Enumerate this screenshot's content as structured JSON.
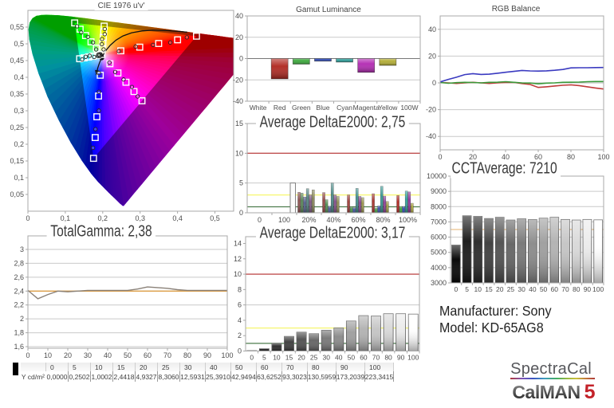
{
  "report": {
    "manufacturer_label": "Manufacturer: Sony",
    "model_label": "Model: KD-65AG8",
    "logo": {
      "spectracal": "SpectraCal",
      "calman": "CalMAN",
      "version": "5"
    }
  },
  "chart_data": [
    {
      "id": "cie",
      "type": "scatter",
      "title": "CIE 1976 u'v'",
      "xticks": [
        "0",
        "0,1",
        "0,2",
        "0,3",
        "0,4",
        "0,5"
      ],
      "xtick_vals": [
        0,
        0.1,
        0.2,
        0.3,
        0.4,
        0.5
      ],
      "yticks": [
        "0",
        "0,05",
        "0,1",
        "0,15",
        "0,2",
        "0,25",
        "0,3",
        "0,35",
        "0,4",
        "0,45",
        "0,5",
        "0,55"
      ],
      "ytick_vals": [
        0,
        0.05,
        0.1,
        0.15,
        0.2,
        0.25,
        0.3,
        0.35,
        0.4,
        0.45,
        0.5,
        0.55
      ],
      "xlim": [
        0,
        0.55
      ],
      "ylim": [
        0,
        0.6
      ],
      "gamut_triangle": [
        [
          0.4507,
          0.5229
        ],
        [
          0.125,
          0.5625
        ],
        [
          0.1754,
          0.1579
        ]
      ],
      "targets": [
        [
          0.2484,
          0.4792
        ],
        [
          0.299,
          0.4901
        ],
        [
          0.3496,
          0.5011
        ],
        [
          0.4001,
          0.512
        ],
        [
          0.4507,
          0.5229
        ],
        [
          0.1833,
          0.4872
        ],
        [
          0.1687,
          0.506
        ],
        [
          0.1541,
          0.5248
        ],
        [
          0.1396,
          0.5437
        ],
        [
          0.125,
          0.5625
        ],
        [
          0.1934,
          0.4062
        ],
        [
          0.1889,
          0.3441
        ],
        [
          0.1844,
          0.2821
        ],
        [
          0.1799,
          0.22
        ],
        [
          0.1754,
          0.1579
        ],
        [
          0.1859,
          0.4657
        ],
        [
          0.174,
          0.4632
        ],
        [
          0.1621,
          0.4606
        ],
        [
          0.1502,
          0.458
        ],
        [
          0.1383,
          0.4555
        ],
        [
          0.2193,
          0.4406
        ],
        [
          0.2407,
          0.4129
        ],
        [
          0.2621,
          0.3852
        ],
        [
          0.2836,
          0.3575
        ],
        [
          0.305,
          0.3298
        ],
        [
          0.199,
          0.4852
        ],
        [
          0.2003,
          0.5022
        ],
        [
          0.2015,
          0.5191
        ],
        [
          0.2027,
          0.536
        ],
        [
          0.2039,
          0.5529
        ],
        [
          0.1978,
          0.4683
        ]
      ],
      "measured": [
        [
          0.2433,
          0.4781
        ],
        [
          0.288,
          0.4918
        ],
        [
          0.3346,
          0.4968
        ],
        [
          0.3807,
          0.504
        ],
        [
          0.425,
          0.5194
        ],
        [
          0.1824,
          0.4834
        ],
        [
          0.174,
          0.5041
        ],
        [
          0.1602,
          0.5205
        ],
        [
          0.1425,
          0.5339
        ],
        [
          0.1313,
          0.5523
        ],
        [
          0.1898,
          0.4127
        ],
        [
          0.1898,
          0.3566
        ],
        [
          0.1897,
          0.3004
        ],
        [
          0.1806,
          0.2449
        ],
        [
          0.174,
          0.1892
        ],
        [
          0.1876,
          0.4637
        ],
        [
          0.177,
          0.4608
        ],
        [
          0.165,
          0.4644
        ],
        [
          0.1545,
          0.4612
        ],
        [
          0.145,
          0.4532
        ],
        [
          0.2178,
          0.4439
        ],
        [
          0.2333,
          0.416
        ],
        [
          0.2558,
          0.3936
        ],
        [
          0.2781,
          0.371
        ],
        [
          0.2934,
          0.3429
        ],
        [
          0.2024,
          0.4833
        ],
        [
          0.1977,
          0.4989
        ],
        [
          0.1982,
          0.5142
        ],
        [
          0.2053,
          0.529
        ],
        [
          0.2054,
          0.5443
        ]
      ],
      "grayscale_measured": [
        [
          0.1938,
          0.4688
        ],
        [
          0.1948,
          0.467
        ],
        [
          0.192,
          0.4642
        ],
        [
          0.1917,
          0.4645
        ],
        [
          0.1935,
          0.4675
        ],
        [
          0.1915,
          0.4688
        ],
        [
          0.1898,
          0.4665
        ],
        [
          0.1917,
          0.464
        ],
        [
          0.191,
          0.4649
        ],
        [
          0.1884,
          0.4679
        ]
      ],
      "planckian_locus": [
        [
          0.4258,
          0.5348
        ],
        [
          0.406,
          0.5369
        ],
        [
          0.3723,
          0.5396
        ],
        [
          0.3336,
          0.5406
        ],
        [
          0.305,
          0.5386
        ],
        [
          0.2776,
          0.533
        ],
        [
          0.2542,
          0.5235
        ],
        [
          0.2357,
          0.5113
        ],
        [
          0.2202,
          0.496
        ],
        [
          0.2095,
          0.4816
        ],
        [
          0.2005,
          0.4655
        ],
        [
          0.1946,
          0.4522
        ],
        [
          0.1903,
          0.4401
        ],
        [
          0.1869,
          0.4285
        ],
        [
          0.1848,
          0.4194
        ],
        [
          0.1836,
          0.4127
        ],
        [
          0.1827,
          0.4067
        ]
      ],
      "white_point_dot": [
        0.1973,
        0.4586
      ]
    },
    {
      "id": "gamut-luminance",
      "type": "bar",
      "title": "Gamut Luminance",
      "categories": [
        "White",
        "Red",
        "Green",
        "Blue",
        "Cyan",
        "Magenta",
        "Yellow",
        "100W"
      ],
      "values": [
        0,
        -19,
        -5.2,
        -2.4,
        -3.3,
        -12.9,
        -6.4,
        0
      ],
      "bar_colors": [
        "#ffffff",
        "#b02820",
        "#3aa83a",
        "#2a46b4",
        "#2e9e99",
        "#b32ab3",
        "#b3ad33",
        "#ffffff"
      ],
      "ylim": [
        -40,
        40
      ],
      "yticks": [
        "40",
        "20",
        "0",
        "-20",
        "-40"
      ],
      "ytick_vals": [
        40,
        20,
        0,
        -20,
        -40
      ]
    },
    {
      "id": "rgb-balance",
      "type": "line",
      "title": "RGB Balance",
      "x": [
        0,
        5,
        10,
        15,
        20,
        25,
        30,
        35,
        40,
        45,
        50,
        55,
        60,
        65,
        70,
        75,
        80,
        85,
        90,
        95,
        100
      ],
      "series": [
        {
          "name": "Red",
          "color": "#c03a3a",
          "values": [
            0.3,
            0,
            -0.4,
            0,
            0.4,
            0,
            -0.4,
            0,
            0.3,
            0.4,
            -0.5,
            -1.2,
            -3.4,
            -2.9,
            -2.3,
            -1.8,
            -1.5,
            -2,
            -2.9,
            -3.8,
            -4.6
          ]
        },
        {
          "name": "Green",
          "color": "#3a9a3a",
          "values": [
            0.3,
            -0.3,
            0.2,
            0.4,
            0.3,
            0,
            0.4,
            0.5,
            0.9,
            0.4,
            0,
            -0.1,
            -0.7,
            -0.2,
            0,
            0.4,
            0.5,
            0.6,
            0.9,
            1,
            1
          ]
        },
        {
          "name": "Blue",
          "color": "#3a3ac0",
          "values": [
            0.7,
            2.6,
            4.2,
            6.2,
            6.9,
            6.3,
            6.5,
            7.2,
            7.9,
            8.6,
            9.3,
            8.9,
            8.8,
            9,
            9.4,
            10,
            11.2,
            11.3,
            11.3,
            11.4,
            11.5
          ]
        }
      ],
      "ylim": [
        -50,
        50
      ],
      "yticks": [
        "40",
        "20",
        "0",
        "-20",
        "-40"
      ],
      "ytick_vals": [
        40,
        20,
        0,
        -20,
        -40
      ],
      "xticks": [
        "0",
        "20",
        "40",
        "60",
        "80",
        "100"
      ],
      "xtick_vals": [
        0,
        20,
        40,
        60,
        80,
        100
      ]
    },
    {
      "id": "deltae-colorchecker",
      "type": "grouped-bar",
      "title": "Average DeltaE2000: 2,75",
      "slot_labels": [
        "0",
        "100",
        "20%",
        "40%",
        "60%",
        "80%",
        "100%"
      ],
      "white_bar": {
        "slot": 1,
        "value": 5.0,
        "color": "#fdfdfd"
      },
      "groups": [
        {
          "slot": 2,
          "label": "20%",
          "values": [
            3.45,
            3.3,
            2.65,
            4.05,
            3.0,
            3.85
          ],
          "colors": [
            "#8d504d",
            "#588958",
            "#515e8e",
            "#538482",
            "#7f5684",
            "#898659"
          ]
        },
        {
          "slot": 3,
          "label": "40%",
          "values": [
            3.4,
            2.2,
            1.1,
            5.0,
            3.0,
            2.75
          ],
          "colors": [
            "#964642",
            "#519051",
            "#475897",
            "#4a8b88",
            "#844e8b",
            "#908d52"
          ]
        },
        {
          "slot": 4,
          "label": "60%",
          "values": [
            3.0,
            1.0,
            0.85,
            4.1,
            2.75,
            2.55
          ],
          "colors": [
            "#a03c36",
            "#499849",
            "#3e52a1",
            "#40918e",
            "#894691",
            "#98944b"
          ]
        },
        {
          "slot": 5,
          "label": "80%",
          "values": [
            3.2,
            0.75,
            1.15,
            4.45,
            2.8,
            1.9
          ],
          "colors": [
            "#a9322b",
            "#42a042",
            "#344caa",
            "#379893",
            "#8e3d98",
            "#a09b43"
          ]
        },
        {
          "slot": 6,
          "label": "100%",
          "values": [
            2.9,
            1.05,
            1.05,
            3.65,
            3.5,
            1.6
          ],
          "colors": [
            "#b22820",
            "#3aa83a",
            "#2a46b4",
            "#2e9e99",
            "#93359e",
            "#a8a23c"
          ]
        }
      ],
      "bar_series_names": [
        "Red",
        "Green",
        "Blue",
        "Cyan",
        "Magenta",
        "Yellow"
      ],
      "ref_lines": [
        {
          "value": 10,
          "color": "#c05050"
        },
        {
          "value": 3,
          "color": "#f7f780"
        },
        {
          "value": 1,
          "color": "#4e7d4e"
        }
      ],
      "ylim": [
        0,
        15
      ],
      "yticks": [
        "0",
        "5",
        "10",
        "15"
      ],
      "ytick_vals": [
        0,
        5,
        10,
        15
      ],
      "gridline_vals": [
        5,
        15
      ]
    },
    {
      "id": "cct",
      "type": "bar",
      "title": "CCTAverage: 7210",
      "categories": [
        "0",
        "5",
        "10",
        "15",
        "20",
        "25",
        "30",
        "40",
        "50",
        "60",
        "70",
        "80",
        "90",
        "100"
      ],
      "values": [
        5480,
        7400,
        7360,
        7220,
        7300,
        7120,
        7200,
        7150,
        7240,
        7300,
        7160,
        7120,
        7160,
        7130
      ],
      "target_line": {
        "value": 6500,
        "color": "#eac28c"
      },
      "ylim": [
        3000,
        10000
      ],
      "yticks": [
        "10000",
        "9000",
        "8000",
        "7000",
        "6000",
        "5000",
        "4000",
        "3000"
      ],
      "ytick_vals": [
        10000,
        9000,
        8000,
        7000,
        6000,
        5000,
        4000,
        3000
      ]
    },
    {
      "id": "gamma",
      "type": "line",
      "title": "TotalGamma: 2,38",
      "x": [
        0,
        5,
        10,
        15,
        20,
        25,
        30,
        35,
        40,
        45,
        50,
        55,
        60,
        65,
        70,
        75,
        80,
        85,
        90,
        95,
        100
      ],
      "series": [
        {
          "name": "Gamma",
          "color": "#8a8178",
          "values": [
            2.41,
            2.29,
            2.35,
            2.4,
            2.39,
            2.4,
            2.41,
            2.41,
            2.41,
            2.41,
            2.41,
            2.43,
            2.46,
            2.45,
            2.44,
            2.42,
            2.41,
            2.41,
            2.41,
            2.41,
            2.41
          ]
        }
      ],
      "target_line": {
        "value": 2.4,
        "color": "#dd9e46"
      },
      "ylim": [
        1.577,
        3.195
      ],
      "yticks": [
        "3",
        "2,8",
        "2,6",
        "2,4",
        "2,2",
        "2",
        "1,8",
        "1,6"
      ],
      "ytick_vals": [
        3,
        2.8,
        2.6,
        2.4,
        2.2,
        2,
        1.8,
        1.6
      ],
      "xticks": [
        "0",
        "10",
        "20",
        "30",
        "40",
        "50",
        "60",
        "70",
        "80",
        "90",
        "100"
      ],
      "xtick_vals": [
        0,
        10,
        20,
        30,
        40,
        50,
        60,
        70,
        80,
        90,
        100
      ]
    },
    {
      "id": "deltae-grayscale",
      "type": "bar",
      "title": "Average DeltaE2000: 3,17",
      "categories": [
        "0",
        "5",
        "10",
        "15",
        "20",
        "25",
        "30",
        "40",
        "50",
        "60",
        "70",
        "80",
        "90",
        "100"
      ],
      "values": [
        0.05,
        0.3,
        1.0,
        1.9,
        2.45,
        2.25,
        2.7,
        3.0,
        3.9,
        4.6,
        4.55,
        4.85,
        4.85,
        4.8
      ],
      "ref_lines": [
        {
          "value": 10,
          "color": "#c05050"
        },
        {
          "value": 3,
          "color": "#f7f780"
        },
        {
          "value": 1,
          "color": "#4e7d4e"
        }
      ],
      "ylim": [
        0,
        14.88
      ],
      "yticks": [
        "0",
        "2",
        "4",
        "6",
        "8",
        "10",
        "12",
        "14"
      ],
      "ytick_vals": [
        0,
        2,
        4,
        6,
        8,
        10,
        12,
        14
      ],
      "gridline_vals": [
        6
      ]
    }
  ],
  "table": {
    "row_label": "Y cd/m²",
    "columns": [
      "0",
      "5",
      "10",
      "15",
      "20",
      "25",
      "30",
      "40",
      "50",
      "60",
      "70",
      "80",
      "90",
      "100"
    ],
    "values": [
      "0,0000",
      "0,2502",
      "1,0002",
      "2,4418",
      "4,9327",
      "8,3060",
      "12,5931",
      "25,3910",
      "42,9494",
      "63,6252",
      "93,3023",
      "130,5959",
      "173,2039",
      "223,3415"
    ]
  }
}
